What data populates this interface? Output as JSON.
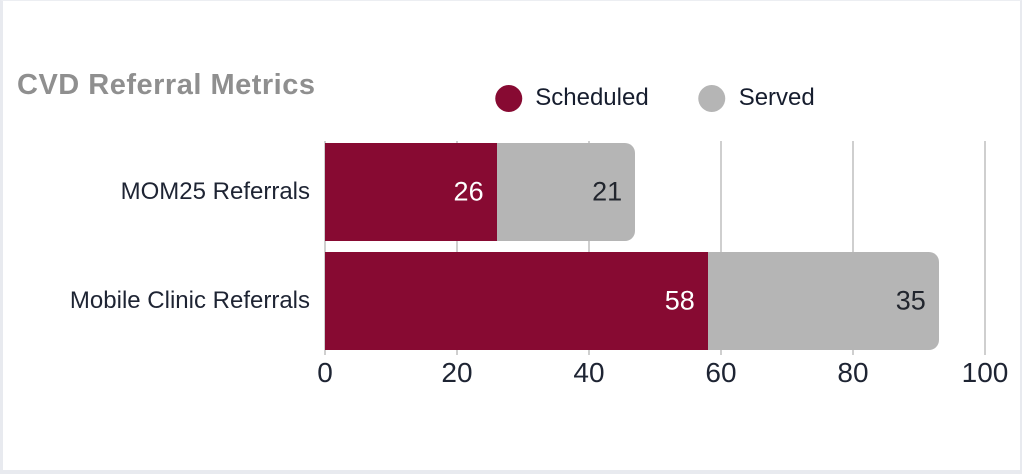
{
  "card": {
    "background": "#ffffff",
    "border_color": "#e8eaef"
  },
  "chart_data": {
    "type": "bar",
    "orientation": "horizontal",
    "stacked": true,
    "title": "CVD Referral Metrics",
    "categories": [
      "MOM25 Referrals",
      "Mobile Clinic Referrals"
    ],
    "series": [
      {
        "name": "Scheduled",
        "values": [
          26,
          58
        ],
        "color": "#870a32",
        "label_color": "#ffffff"
      },
      {
        "name": "Served",
        "values": [
          21,
          35
        ],
        "color": "#b5b5b5",
        "label_color": "#22262e"
      }
    ],
    "xlim": [
      0,
      100
    ],
    "x_ticks": [
      0,
      20,
      40,
      60,
      80,
      100
    ],
    "grid": true,
    "legend_position": "top",
    "colors": {
      "title": "#8f8f8f",
      "text": "#1e2433",
      "legend_text": "#161d2e",
      "gridline": "#cfcfcf"
    }
  }
}
